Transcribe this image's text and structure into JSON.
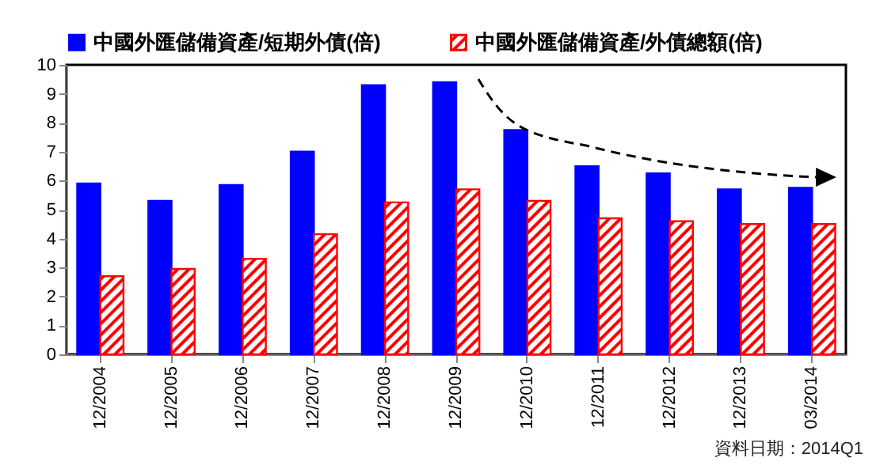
{
  "chart_data": {
    "type": "bar",
    "categories": [
      "12/2004",
      "12/2005",
      "12/2006",
      "12/2007",
      "12/2008",
      "12/2009",
      "12/2010",
      "12/2011",
      "12/2012",
      "12/2013",
      "03/2014"
    ],
    "series": [
      {
        "name": "中國外匯儲備資產/短期外債(倍)",
        "color": "#0000ff",
        "values": [
          5.9,
          5.3,
          5.85,
          7.0,
          9.3,
          9.4,
          7.75,
          6.5,
          6.25,
          5.7,
          5.75
        ]
      },
      {
        "name": "中國外匯儲備資產/外債總額(倍)",
        "color": "#ff0000",
        "values": [
          2.7,
          2.95,
          3.3,
          4.15,
          5.25,
          5.7,
          5.3,
          4.7,
          4.6,
          4.5,
          4.5
        ]
      }
    ],
    "ylim": [
      0,
      10
    ],
    "yticks": [
      0,
      1,
      2,
      3,
      4,
      5,
      6,
      7,
      8,
      9,
      10
    ],
    "grid": false,
    "legend": "top",
    "annotations": [
      "資料日期：2014Q1"
    ]
  }
}
